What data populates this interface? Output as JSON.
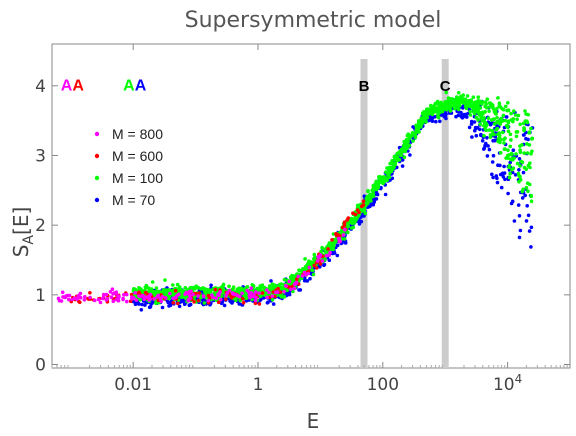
{
  "chart_data": {
    "type": "scatter",
    "title": "Supersymmetric model",
    "xlabel": "E",
    "ylabel_main": "S",
    "ylabel_sub": "A",
    "ylabel_suffix": "[E]",
    "xscale": "log",
    "xlim": [
      0.0005,
      100000
    ],
    "ylim": [
      -0.05,
      4.6
    ],
    "x_ticks": [
      {
        "value": 0.01,
        "label": "0.01"
      },
      {
        "value": 1,
        "label": "1"
      },
      {
        "value": 100,
        "label": "100"
      },
      {
        "value": 10000,
        "label": "10",
        "sup": "4"
      }
    ],
    "y_ticks": [
      {
        "value": 0,
        "label": "0"
      },
      {
        "value": 1,
        "label": "1"
      },
      {
        "value": 2,
        "label": "2"
      },
      {
        "value": 3,
        "label": "3"
      },
      {
        "value": 4,
        "label": "4"
      }
    ],
    "vertical_bands": [
      {
        "label": "B",
        "x": 50
      },
      {
        "label": "C",
        "x": 1000
      }
    ],
    "corner_labels": [
      {
        "x": 0.001,
        "y": 4.02,
        "parts": [
          {
            "text": "A",
            "color": "#ff00ff"
          },
          {
            "text": "A",
            "color": "#ff0000"
          }
        ]
      },
      {
        "x": 0.01,
        "y": 4.02,
        "parts": [
          {
            "text": "A",
            "color": "#00ff00"
          },
          {
            "text": "A",
            "color": "#0000ff"
          }
        ]
      }
    ],
    "legend_position": "left",
    "series": [
      {
        "name": "M = 800",
        "label": "M = 800",
        "color": "#ff00ff"
      },
      {
        "name": "M = 600",
        "label": "M = 600",
        "color": "#ff0000"
      },
      {
        "name": "M = 100",
        "label": "M = 100",
        "color": "#00ff00"
      },
      {
        "name": "M = 70",
        "label": "M = 70",
        "color": "#0000ff"
      }
    ]
  }
}
